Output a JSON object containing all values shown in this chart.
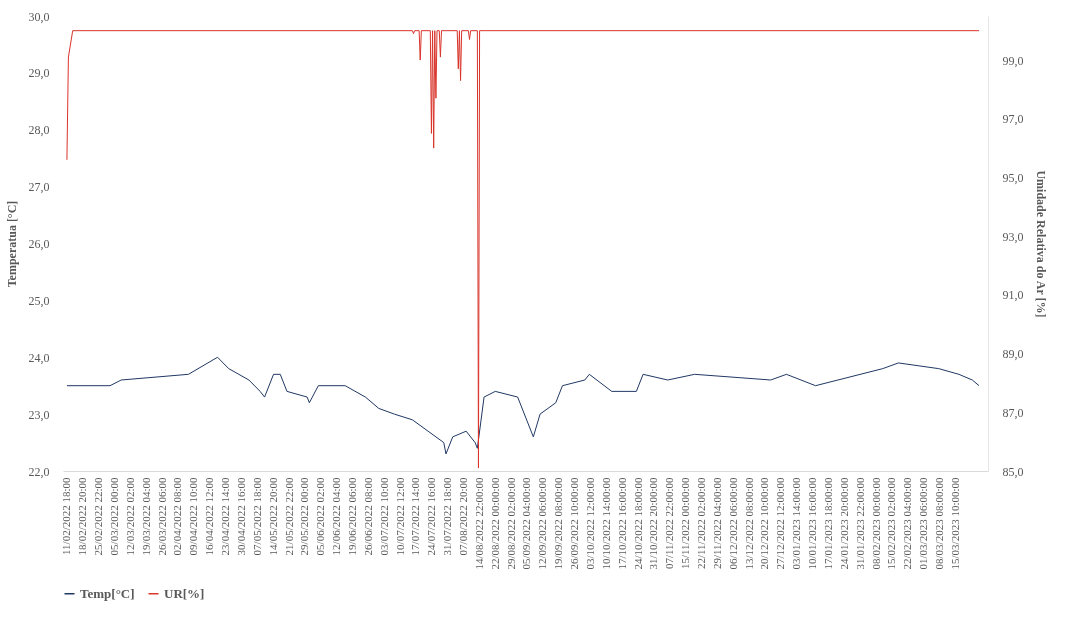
{
  "chart_data": {
    "type": "line",
    "ylabel": "Temperatua [°C]",
    "y2label": "Umidade Relativa do Ar [%]",
    "legend": "bottom",
    "grid": false,
    "xlim": [
      "2022-02-10T00:00",
      "2023-03-30T00:00"
    ],
    "ylim": [
      22,
      30
    ],
    "yticks": [
      {
        "value": 22,
        "label": "22,0"
      },
      {
        "value": 23,
        "label": "23,0"
      },
      {
        "value": 24,
        "label": "24,0"
      },
      {
        "value": 25,
        "label": "25,0"
      },
      {
        "value": 26,
        "label": "26,0"
      },
      {
        "value": 27,
        "label": "27,0"
      },
      {
        "value": 28,
        "label": "28,0"
      },
      {
        "value": 29,
        "label": "29,0"
      },
      {
        "value": 30,
        "label": "30,0"
      }
    ],
    "y2lim": [
      85,
      100.5
    ],
    "y2ticks": [
      {
        "value": 85,
        "label": "85,0"
      },
      {
        "value": 87,
        "label": "87,0"
      },
      {
        "value": 89,
        "label": "89,0"
      },
      {
        "value": 91,
        "label": "91,0"
      },
      {
        "value": 93,
        "label": "93,0"
      },
      {
        "value": 95,
        "label": "95,0"
      },
      {
        "value": 97,
        "label": "97,0"
      },
      {
        "value": 99,
        "label": "99,0"
      }
    ],
    "xticks": [
      {
        "value": "2022-02-11T18:00",
        "label": "11/02/2022 18:00"
      },
      {
        "value": "2022-02-18T20:00",
        "label": "18/02/2022 20:00"
      },
      {
        "value": "2022-02-25T22:00",
        "label": "25/02/2022 22:00"
      },
      {
        "value": "2022-03-05T00:00",
        "label": "05/03/2022 00:00"
      },
      {
        "value": "2022-03-12T02:00",
        "label": "12/03/2022 02:00"
      },
      {
        "value": "2022-03-19T04:00",
        "label": "19/03/2022 04:00"
      },
      {
        "value": "2022-03-26T06:00",
        "label": "26/03/2022 06:00"
      },
      {
        "value": "2022-04-02T08:00",
        "label": "02/04/2022 08:00"
      },
      {
        "value": "2022-04-09T10:00",
        "label": "09/04/2022 10:00"
      },
      {
        "value": "2022-04-16T12:00",
        "label": "16/04/2022 12:00"
      },
      {
        "value": "2022-04-23T14:00",
        "label": "23/04/2022 14:00"
      },
      {
        "value": "2022-04-30T16:00",
        "label": "30/04/2022 16:00"
      },
      {
        "value": "2022-05-07T18:00",
        "label": "07/05/2022 18:00"
      },
      {
        "value": "2022-05-14T20:00",
        "label": "14/05/2022 20:00"
      },
      {
        "value": "2022-05-21T22:00",
        "label": "21/05/2022 22:00"
      },
      {
        "value": "2022-05-29T00:00",
        "label": "29/05/2022 00:00"
      },
      {
        "value": "2022-06-05T02:00",
        "label": "05/06/2022 02:00"
      },
      {
        "value": "2022-06-12T04:00",
        "label": "12/06/2022 04:00"
      },
      {
        "value": "2022-06-19T06:00",
        "label": "19/06/2022 06:00"
      },
      {
        "value": "2022-06-26T08:00",
        "label": "26/06/2022 08:00"
      },
      {
        "value": "2022-07-03T10:00",
        "label": "03/07/2022 10:00"
      },
      {
        "value": "2022-07-10T12:00",
        "label": "10/07/2022 12:00"
      },
      {
        "value": "2022-07-17T14:00",
        "label": "17/07/2022 14:00"
      },
      {
        "value": "2022-07-24T16:00",
        "label": "24/07/2022 16:00"
      },
      {
        "value": "2022-07-31T18:00",
        "label": "31/07/2022 18:00"
      },
      {
        "value": "2022-08-07T20:00",
        "label": "07/08/2022 20:00"
      },
      {
        "value": "2022-08-14T22:00",
        "label": "14/08/2022 22:00:00"
      },
      {
        "value": "2022-08-22T00:00",
        "label": "22/08/2022 00:00:00"
      },
      {
        "value": "2022-08-29T02:00",
        "label": "29/08/2022 02:00:00"
      },
      {
        "value": "2022-09-05T04:00",
        "label": "05/09/2022 04:00:00"
      },
      {
        "value": "2022-09-12T06:00",
        "label": "12/09/2022 06:00:00"
      },
      {
        "value": "2022-09-19T08:00",
        "label": "19/09/2022 08:00:00"
      },
      {
        "value": "2022-09-26T10:00",
        "label": "26/09/2022 10:00:00"
      },
      {
        "value": "2022-10-03T12:00",
        "label": "03/10/2022 12:00:00"
      },
      {
        "value": "2022-10-10T14:00",
        "label": "10/10/2022 14:00:00"
      },
      {
        "value": "2022-10-17T16:00",
        "label": "17/10/2022 16:00:00"
      },
      {
        "value": "2022-10-24T18:00",
        "label": "24/10/2022 18:00:00"
      },
      {
        "value": "2022-10-31T20:00",
        "label": "31/10/2022 20:00:00"
      },
      {
        "value": "2022-11-07T22:00",
        "label": "07/11/2022 22:00:00"
      },
      {
        "value": "2022-11-15T00:00",
        "label": "15/11/2022 00:00:00"
      },
      {
        "value": "2022-11-22T02:00",
        "label": "22/11/2022 02:00:00"
      },
      {
        "value": "2022-11-29T04:00",
        "label": "29/11/2022 04:00:00"
      },
      {
        "value": "2022-12-06T06:00",
        "label": "06/12/2022 06:00:00"
      },
      {
        "value": "2022-12-13T08:00",
        "label": "13/12/2022 08:00:00"
      },
      {
        "value": "2022-12-20T10:00",
        "label": "20/12/2022 10:00:00"
      },
      {
        "value": "2022-12-27T12:00",
        "label": "27/12/2022 12:00:00"
      },
      {
        "value": "2023-01-03T14:00",
        "label": "03/01/2023 14:00:00"
      },
      {
        "value": "2023-01-10T16:00",
        "label": "10/01/2023 16:00:00"
      },
      {
        "value": "2023-01-17T18:00",
        "label": "17/01/2023 18:00:00"
      },
      {
        "value": "2023-01-24T20:00",
        "label": "24/01/2023 20:00:00"
      },
      {
        "value": "2023-01-31T22:00",
        "label": "31/01/2023 22:00:00"
      },
      {
        "value": "2023-02-08T00:00",
        "label": "08/02/2023 00:00:00"
      },
      {
        "value": "2023-02-15T02:00",
        "label": "15/02/2023 02:00:00"
      },
      {
        "value": "2023-02-22T04:00",
        "label": "22/02/2023 04:00:00"
      },
      {
        "value": "2023-03-01T06:00",
        "label": "01/03/2023 06:00:00"
      },
      {
        "value": "2023-03-08T08:00",
        "label": "08/03/2023 08:00:00"
      },
      {
        "value": "2023-03-15T10:00",
        "label": "15/03/2023 10:00:00"
      }
    ],
    "series": [
      {
        "name": "Temp[°C]",
        "color": "#203864",
        "x": [
          "2022-02-11T18:00",
          "2022-03-03",
          "2022-03-08",
          "2022-04-07",
          "2022-04-20",
          "2022-04-25",
          "2022-05-04",
          "2022-05-09",
          "2022-05-11",
          "2022-05-15",
          "2022-05-18",
          "2022-05-21",
          "2022-05-30",
          "2022-05-31",
          "2022-06-04",
          "2022-06-16",
          "2022-06-25",
          "2022-07-01",
          "2022-07-08",
          "2022-07-16",
          "2022-07-23",
          "2022-07-30",
          "2022-07-31",
          "2022-08-03",
          "2022-08-09",
          "2022-08-13",
          "2022-08-14",
          "2022-08-17",
          "2022-08-22",
          "2022-09-01",
          "2022-09-08",
          "2022-09-11",
          "2022-09-18",
          "2022-09-21",
          "2022-10-01",
          "2022-10-03",
          "2022-10-13",
          "2022-10-24",
          "2022-10-27",
          "2022-11-07",
          "2022-11-19",
          "2022-12-23",
          "2022-12-30",
          "2023-01-12",
          "2023-01-22",
          "2023-02-11",
          "2023-02-18",
          "2023-03-08",
          "2023-03-17",
          "2023-03-23",
          "2023-03-26"
        ],
        "values": [
          23.5,
          23.5,
          23.6,
          23.7,
          24.0,
          23.8,
          23.6,
          23.4,
          23.3,
          23.7,
          23.7,
          23.4,
          23.3,
          23.2,
          23.5,
          23.5,
          23.3,
          23.1,
          23.0,
          22.9,
          22.7,
          22.5,
          22.3,
          22.6,
          22.7,
          22.5,
          22.4,
          23.3,
          23.4,
          23.3,
          22.6,
          23.0,
          23.2,
          23.5,
          23.6,
          23.7,
          23.4,
          23.4,
          23.7,
          23.6,
          23.7,
          23.6,
          23.7,
          23.5,
          23.6,
          23.8,
          23.9,
          23.8,
          23.7,
          23.6,
          23.5
        ]
      },
      {
        "name": "UR[%]",
        "color": "#d9342b",
        "axis": "y2",
        "x": [
          "2022-02-11T18:00",
          "2022-02-12T10:00",
          "2022-02-14T08:00",
          "2022-07-16T00:00",
          "2022-07-16T12:00",
          "2022-07-17T00:00",
          "2022-07-19T00:00",
          "2022-07-19T12:00",
          "2022-07-20T00:00",
          "2022-07-24T00:00",
          "2022-07-24T12:00",
          "2022-07-25T00:00",
          "2022-07-25T12:00",
          "2022-07-26T00:00",
          "2022-07-26T12:00",
          "2022-07-27T00:00",
          "2022-07-28T00:00",
          "2022-07-28T12:00",
          "2022-07-29T00:00",
          "2022-08-05T00:00",
          "2022-08-05T12:00",
          "2022-08-06T00:00",
          "2022-08-06T12:00",
          "2022-08-07T00:00",
          "2022-08-10T00:00",
          "2022-08-10T12:00",
          "2022-08-11T00:00",
          "2022-08-14T00:00",
          "2022-08-14T12:00",
          "2022-08-15T00:00",
          "2023-03-26T00:00"
        ],
        "values": [
          95.6,
          99.1,
          100,
          100,
          99.9,
          100,
          100,
          99.0,
          100,
          100,
          96.5,
          100,
          96.0,
          100,
          97.7,
          100,
          100,
          99.1,
          100,
          100,
          98.7,
          100,
          98.3,
          100,
          100,
          99.7,
          100,
          100,
          85.1,
          100,
          100
        ]
      }
    ]
  }
}
